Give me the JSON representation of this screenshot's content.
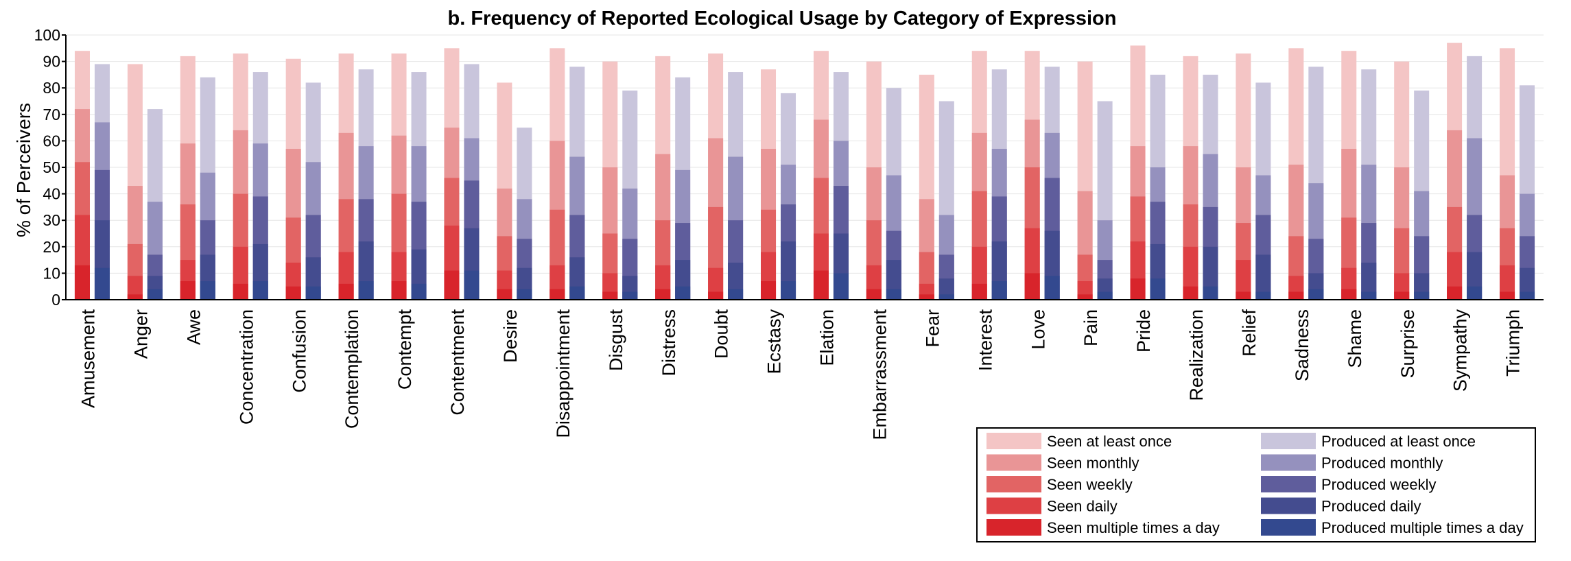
{
  "chart_data": {
    "type": "bar",
    "title": "b. Frequency of Reported Ecological Usage by Category of Expression",
    "ylabel": "% of Perceivers",
    "xlabel": "",
    "ylim": [
      0,
      100
    ],
    "yticks": [
      0,
      10,
      20,
      30,
      40,
      50,
      60,
      70,
      80,
      90,
      100
    ],
    "grid": "horizontal",
    "legend_position": "bottom-right",
    "categories": [
      "Amusement",
      "Anger",
      "Awe",
      "Concentration",
      "Confusion",
      "Contemplation",
      "Contempt",
      "Contentment",
      "Desire",
      "Disappointment",
      "Disgust",
      "Distress",
      "Doubt",
      "Ecstasy",
      "Elation",
      "Embarrassment",
      "Fear",
      "Interest",
      "Love",
      "Pain",
      "Pride",
      "Realization",
      "Relief",
      "Sadness",
      "Shame",
      "Surprise",
      "Sympathy",
      "Triumph"
    ],
    "groups": [
      {
        "name": "Seen",
        "series": [
          {
            "name": "Seen at least once",
            "color": "#f4c5c5",
            "values": [
              94,
              89,
              92,
              93,
              91,
              93,
              93,
              95,
              82,
              95,
              90,
              92,
              93,
              87,
              94,
              90,
              85,
              94,
              94,
              90,
              96,
              92,
              93,
              95,
              94,
              90,
              97,
              95
            ]
          },
          {
            "name": "Seen monthly",
            "color": "#e99596",
            "values": [
              72,
              43,
              59,
              64,
              57,
              63,
              62,
              65,
              42,
              60,
              50,
              55,
              61,
              57,
              68,
              50,
              38,
              63,
              68,
              41,
              58,
              58,
              50,
              51,
              57,
              50,
              64,
              47
            ]
          },
          {
            "name": "Seen weekly",
            "color": "#e26464",
            "values": [
              52,
              21,
              36,
              40,
              31,
              38,
              40,
              46,
              24,
              34,
              25,
              30,
              35,
              34,
              46,
              30,
              18,
              41,
              50,
              17,
              39,
              36,
              29,
              24,
              31,
              27,
              35,
              27
            ]
          },
          {
            "name": "Seen daily",
            "color": "#de4044",
            "values": [
              32,
              9,
              15,
              20,
              14,
              18,
              18,
              28,
              11,
              13,
              10,
              13,
              12,
              18,
              25,
              13,
              6,
              20,
              27,
              7,
              22,
              20,
              15,
              9,
              12,
              10,
              18,
              13
            ]
          },
          {
            "name": "Seen multiple times a day",
            "color": "#d8242b",
            "values": [
              13,
              2,
              7,
              6,
              5,
              6,
              7,
              11,
              4,
              4,
              3,
              4,
              3,
              7,
              11,
              4,
              2,
              6,
              10,
              2,
              8,
              5,
              3,
              3,
              4,
              3,
              5,
              3
            ]
          }
        ]
      },
      {
        "name": "Produced",
        "series": [
          {
            "name": "Produced at least once",
            "color": "#c9c5dc",
            "values": [
              89,
              72,
              84,
              86,
              82,
              87,
              86,
              89,
              65,
              88,
              79,
              84,
              86,
              78,
              86,
              80,
              75,
              87,
              88,
              75,
              85,
              85,
              82,
              88,
              87,
              79,
              92,
              81
            ]
          },
          {
            "name": "Produced monthly",
            "color": "#9591be",
            "values": [
              67,
              37,
              48,
              59,
              52,
              58,
              58,
              61,
              38,
              54,
              42,
              49,
              54,
              51,
              60,
              47,
              32,
              57,
              63,
              30,
              50,
              55,
              47,
              44,
              51,
              41,
              61,
              40
            ]
          },
          {
            "name": "Produced weekly",
            "color": "#5f5d9c",
            "values": [
              49,
              17,
              30,
              39,
              32,
              38,
              37,
              45,
              23,
              32,
              23,
              29,
              30,
              36,
              43,
              26,
              17,
              39,
              46,
              15,
              37,
              35,
              32,
              23,
              29,
              24,
              32,
              24
            ]
          },
          {
            "name": "Produced daily",
            "color": "#444c8f",
            "values": [
              30,
              9,
              17,
              21,
              16,
              22,
              19,
              27,
              12,
              16,
              9,
              15,
              14,
              22,
              25,
              15,
              8,
              22,
              26,
              8,
              21,
              20,
              17,
              10,
              14,
              10,
              18,
              12
            ]
          },
          {
            "name": "Produced multiple times a day",
            "color": "#33498f",
            "values": [
              12,
              4,
              7,
              7,
              5,
              7,
              6,
              11,
              4,
              5,
              3,
              5,
              4,
              7,
              10,
              4,
              2,
              7,
              9,
              3,
              8,
              5,
              3,
              4,
              3,
              3,
              5,
              3
            ]
          }
        ]
      }
    ]
  }
}
